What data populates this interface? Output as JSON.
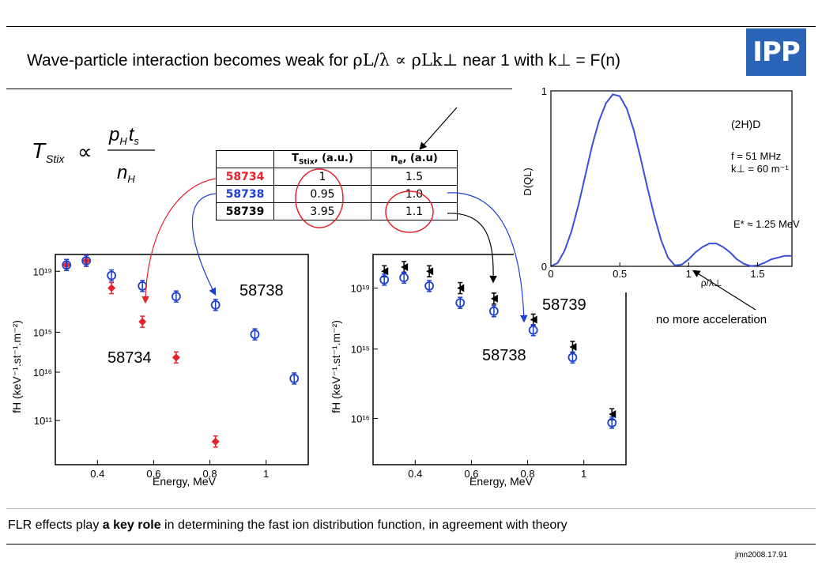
{
  "slide": {
    "title_prefix": "Wave-particle interaction becomes weak for ",
    "title_formula": "ρL/λ ∝ ρLk⊥",
    "title_suffix": " near 1 with k⊥ = F(n)",
    "logo_text": "IPP",
    "formula_text": "TStix ∝ pH ts / nH",
    "footer_part1": "FLR effects play ",
    "footer_bold": "a key role",
    "footer_part2": " in determining the fast ion distribution function, in  agreement with theory",
    "slide_id": "jmn2008.17.91",
    "annotation_no_accel": "no more acceleration"
  },
  "table": {
    "headers": [
      "",
      "TStix, (a.u.)",
      "ne, (a.u)"
    ],
    "rows": [
      {
        "shot": "58734",
        "tstix": "1",
        "ne": "1.5",
        "color": "#e8222a"
      },
      {
        "shot": "58738",
        "tstix": "0.95",
        "ne": "1.0",
        "color": "#1d3fd0"
      },
      {
        "shot": "58739",
        "tstix": "3.95",
        "ne": "1.1",
        "color": "#000000"
      }
    ]
  },
  "chart_data": [
    {
      "type": "scatter",
      "xlabel": "Energy, MeV",
      "ylabel": "fH (keV⁻¹.st⁻¹.m⁻²)",
      "x_ticks": [
        "0.4",
        "0.6",
        "0.8",
        "1"
      ],
      "y_ticks": [
        "10¹⁹",
        "10¹⁵",
        "10¹⁶",
        "10¹¹"
      ],
      "xlim": [
        0.25,
        1.15
      ],
      "series": [
        {
          "name": "58734",
          "color": "#e8222a",
          "marker": "filled-diamond",
          "x": [
            0.29,
            0.36,
            0.45,
            0.56,
            0.68,
            0.82
          ],
          "y": [
            0.95,
            0.97,
            0.84,
            0.68,
            0.51,
            0.11
          ]
        },
        {
          "name": "58738",
          "color": "#1d3fd0",
          "marker": "open-circle",
          "x": [
            0.29,
            0.36,
            0.45,
            0.56,
            0.68,
            0.82,
            0.96,
            1.1
          ],
          "y": [
            0.95,
            0.97,
            0.9,
            0.85,
            0.8,
            0.76,
            0.62,
            0.41
          ]
        }
      ]
    },
    {
      "type": "scatter",
      "xlabel": "Energy, MeV",
      "ylabel": "fH (keV⁻¹.st⁻¹.m⁻²)",
      "x_ticks": [
        "0.4",
        "0.6",
        "0.8",
        "1"
      ],
      "y_ticks": [
        "10¹⁹",
        "10¹⁵",
        "10¹⁶"
      ],
      "xlim": [
        0.25,
        1.15
      ],
      "series": [
        {
          "name": "58739",
          "color": "#000000",
          "marker": "filled-triangle",
          "x": [
            0.29,
            0.36,
            0.45,
            0.56,
            0.68,
            0.82,
            0.96,
            1.1
          ],
          "y": [
            0.92,
            0.94,
            0.92,
            0.84,
            0.79,
            0.69,
            0.56,
            0.24
          ]
        },
        {
          "name": "58738",
          "color": "#1d3fd0",
          "marker": "open-circle",
          "x": [
            0.29,
            0.36,
            0.45,
            0.56,
            0.68,
            0.82,
            0.96,
            1.1
          ],
          "y": [
            0.88,
            0.89,
            0.85,
            0.77,
            0.73,
            0.64,
            0.51,
            0.2
          ]
        }
      ]
    },
    {
      "type": "line",
      "title": "(2H)D",
      "xlabel": "ρ/λ⊥",
      "ylabel": "D(QL)",
      "annotations": [
        "f = 51 MHz",
        "k⊥ = 60 m⁻¹",
        "E* ≈ 1.25 MeV"
      ],
      "x_ticks": [
        "0",
        "0.5",
        "1",
        "1.5"
      ],
      "y_ticks": [
        "0",
        "1"
      ],
      "xlim": [
        0,
        1.75
      ],
      "ylim": [
        0,
        1
      ],
      "x": [
        0,
        0.05,
        0.1,
        0.15,
        0.2,
        0.25,
        0.3,
        0.35,
        0.4,
        0.45,
        0.5,
        0.55,
        0.6,
        0.65,
        0.7,
        0.75,
        0.8,
        0.85,
        0.9,
        0.95,
        1.0,
        1.05,
        1.1,
        1.15,
        1.2,
        1.25,
        1.3,
        1.35,
        1.4,
        1.45,
        1.5,
        1.55,
        1.6,
        1.65,
        1.7,
        1.75
      ],
      "y": [
        0.0,
        0.02,
        0.09,
        0.2,
        0.35,
        0.52,
        0.69,
        0.83,
        0.93,
        0.98,
        0.97,
        0.9,
        0.78,
        0.62,
        0.45,
        0.29,
        0.15,
        0.05,
        0.005,
        0.01,
        0.04,
        0.08,
        0.11,
        0.13,
        0.13,
        0.11,
        0.08,
        0.04,
        0.015,
        0.002,
        0.005,
        0.02,
        0.04,
        0.05,
        0.06,
        0.06
      ]
    }
  ]
}
